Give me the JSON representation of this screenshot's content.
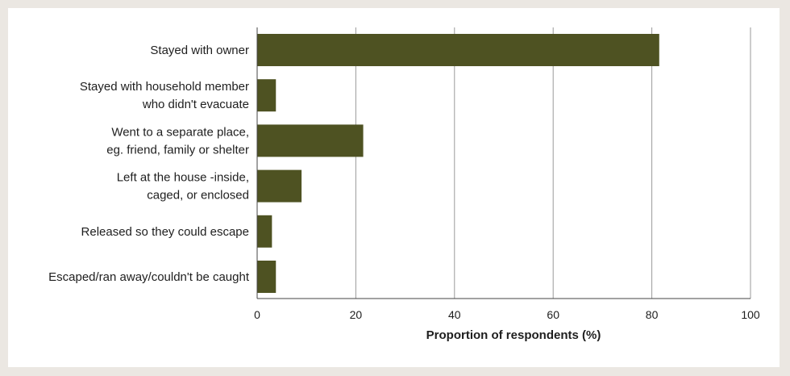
{
  "chart_data": {
    "type": "bar",
    "orientation": "horizontal",
    "categories": [
      [
        "Stayed with owner"
      ],
      [
        "Stayed with household member",
        "who didn't evacuate"
      ],
      [
        "Went to a separate place,",
        "eg. friend, family or shelter"
      ],
      [
        "Left at the house -inside,",
        "caged, or enclosed"
      ],
      [
        "Released so they could escape"
      ],
      [
        "Escaped/ran away/couldn't be caught"
      ]
    ],
    "values": [
      81.5,
      3.8,
      21.5,
      9.0,
      3.0,
      3.8
    ],
    "xlabel": "Proportion of respondents (%)",
    "xlim": [
      0,
      100
    ],
    "xticks": [
      "0",
      "20",
      "40",
      "60",
      "80",
      "100"
    ],
    "grid": "vertical",
    "bar_color": "#4e5222"
  }
}
